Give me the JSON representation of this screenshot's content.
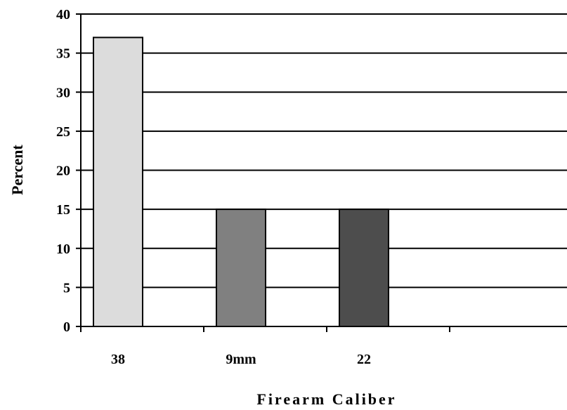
{
  "chart_data": {
    "type": "bar",
    "categories": [
      "38",
      "9mm",
      "22"
    ],
    "values": [
      37,
      15,
      15
    ],
    "bar_colors": [
      "#dcdcdc",
      "#808080",
      "#4d4d4d"
    ],
    "xlabel": "Firearm Caliber",
    "ylabel": "Percent",
    "ylim": [
      0,
      40
    ],
    "yticks": [
      0,
      5,
      10,
      15,
      20,
      25,
      30,
      35,
      40
    ],
    "grid": true
  }
}
